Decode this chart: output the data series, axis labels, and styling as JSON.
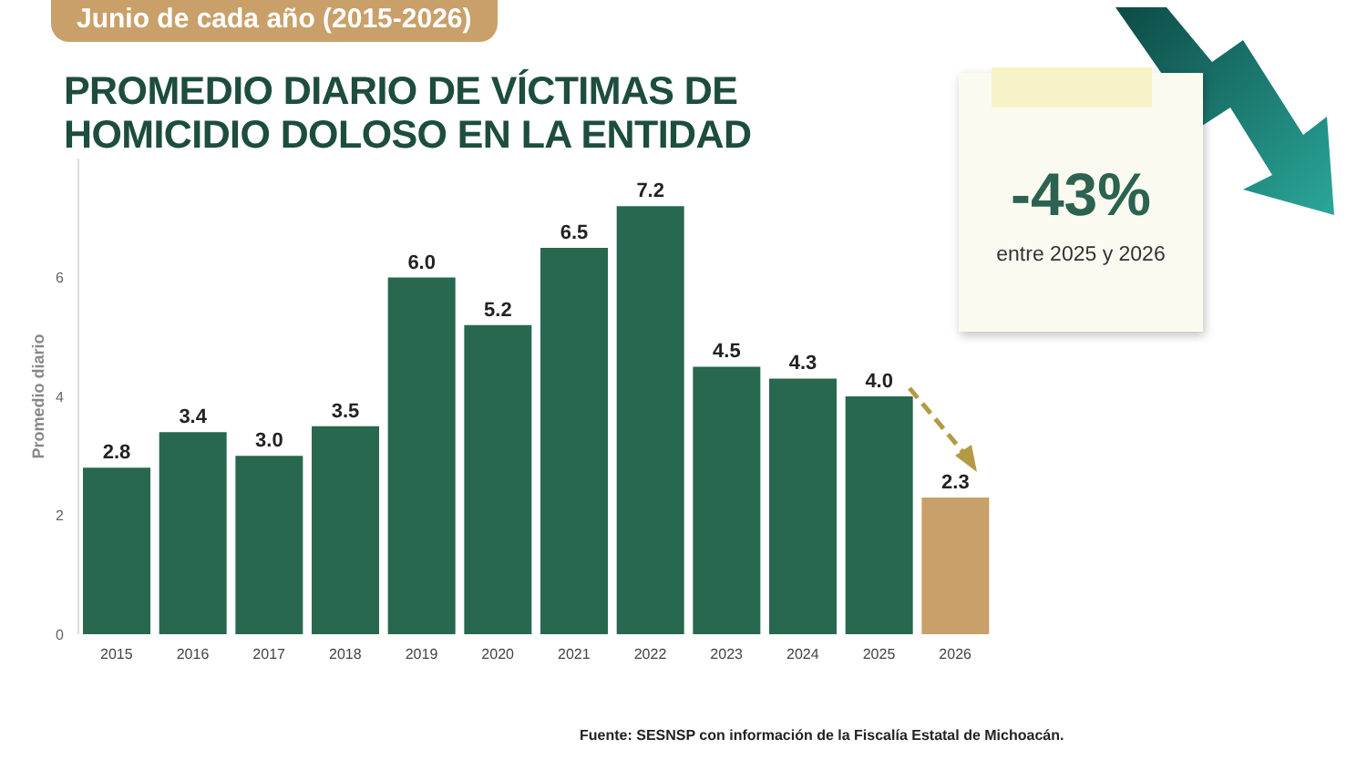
{
  "chart_data": {
    "type": "bar",
    "title": "PROMEDIO DIARIO DE VÍCTIMAS DE HOMICIDIO DOLOSO EN LA ENTIDAD",
    "subtitle": "Junio de cada año (2015-2026)",
    "ylabel": "Promedio diario",
    "categories": [
      "2015",
      "2016",
      "2017",
      "2018",
      "2019",
      "2020",
      "2021",
      "2022",
      "2023",
      "2024",
      "2025",
      "2026"
    ],
    "values": [
      2.8,
      3.4,
      3.0,
      3.5,
      6.0,
      5.2,
      6.5,
      7.2,
      4.5,
      4.3,
      4.0,
      2.3
    ],
    "colors": [
      "#27684f",
      "#27684f",
      "#27684f",
      "#27684f",
      "#27684f",
      "#27684f",
      "#27684f",
      "#27684f",
      "#27684f",
      "#27684f",
      "#27684f",
      "#c9a06a"
    ],
    "ylim": [
      0,
      8
    ],
    "yticks": [
      0,
      2,
      4,
      6
    ],
    "value_labels": [
      "2.8",
      "3.4",
      "3.0",
      "3.5",
      "6.0",
      "5.2",
      "6.5",
      "7.2",
      "4.5",
      "4.3",
      "4.0",
      "2.3"
    ],
    "annotations": [
      "-43%",
      "entre 2025 y 2026",
      "Fuente: SESNSP con información de la Fiscalía Estatal de Michoacán."
    ]
  }
}
